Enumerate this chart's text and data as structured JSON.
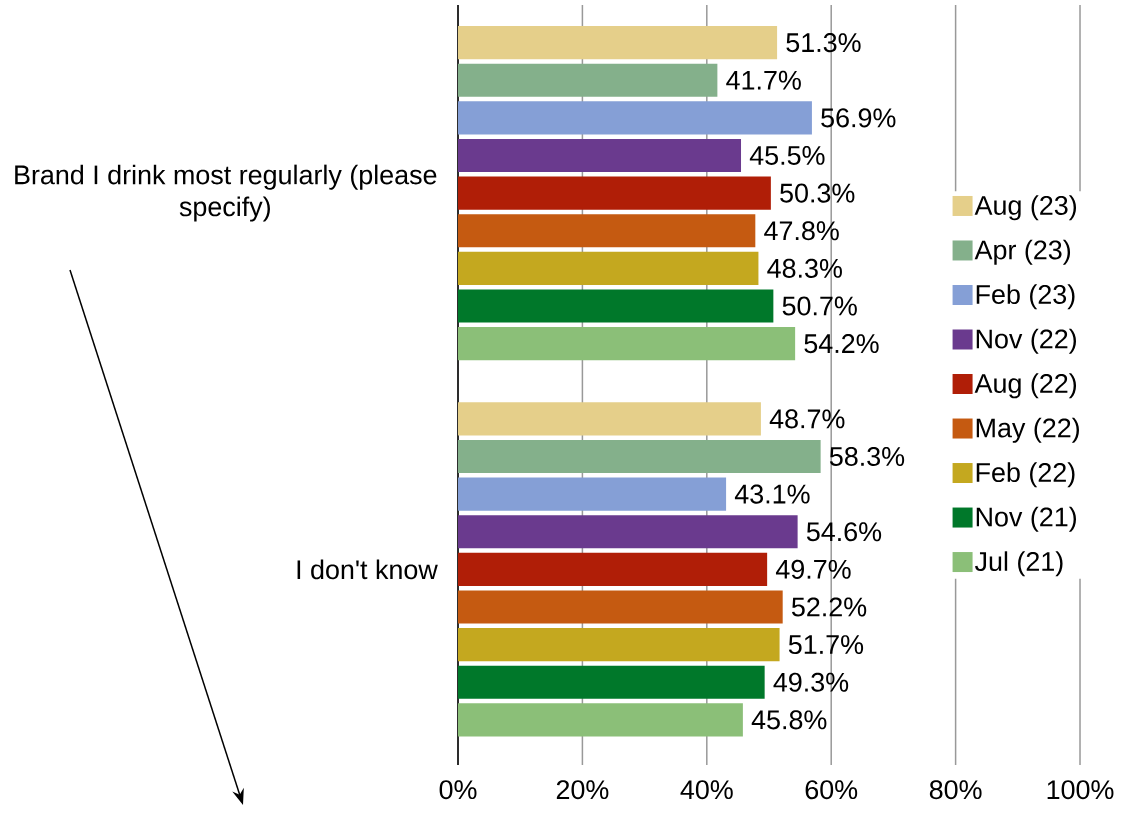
{
  "chart_data": {
    "type": "bar",
    "orientation": "horizontal",
    "categories": [
      "Brand I drink most regularly (please specify)",
      "I don't know"
    ],
    "series": [
      {
        "name": "Aug (23)",
        "color": "#e5cf8a",
        "values": [
          51.3,
          48.7
        ],
        "value_labels": [
          "51.3%",
          "48.7%"
        ]
      },
      {
        "name": "Apr (23)",
        "color": "#84b08b",
        "values": [
          41.7,
          58.3
        ],
        "value_labels": [
          "41.7%",
          "58.3%"
        ]
      },
      {
        "name": "Feb (23)",
        "color": "#859fd6",
        "values": [
          56.9,
          43.1
        ],
        "value_labels": [
          "56.9%",
          "43.1%"
        ]
      },
      {
        "name": "Nov (22)",
        "color": "#6a3a8e",
        "values": [
          45.5,
          54.6
        ],
        "value_labels": [
          "45.5%",
          "54.6%"
        ]
      },
      {
        "name": "Aug (22)",
        "color": "#b01e07",
        "values": [
          50.3,
          49.7
        ],
        "value_labels": [
          "50.3%",
          "49.7%"
        ]
      },
      {
        "name": "May (22)",
        "color": "#c55a11",
        "values": [
          47.8,
          52.2
        ],
        "value_labels": [
          "47.8%",
          "52.2%"
        ]
      },
      {
        "name": "Feb (22)",
        "color": "#c4a81f",
        "values": [
          48.3,
          51.7
        ],
        "value_labels": [
          "48.3%",
          "51.7%"
        ]
      },
      {
        "name": "Nov (21)",
        "color": "#00782a",
        "values": [
          50.7,
          49.3
        ],
        "value_labels": [
          "50.7%",
          "49.3%"
        ]
      },
      {
        "name": "Jul (21)",
        "color": "#8bbf78",
        "values": [
          54.2,
          45.8
        ],
        "value_labels": [
          "54.2%",
          "45.8%"
        ]
      }
    ],
    "xlim": [
      0,
      100
    ],
    "xticks": [
      {
        "value": 0,
        "label": "0%"
      },
      {
        "value": 20,
        "label": "20%"
      },
      {
        "value": 40,
        "label": "40%"
      },
      {
        "value": 60,
        "label": "60%"
      },
      {
        "value": 80,
        "label": "80%"
      },
      {
        "value": 100,
        "label": "100%"
      }
    ],
    "grid": "x",
    "legend": "right"
  }
}
